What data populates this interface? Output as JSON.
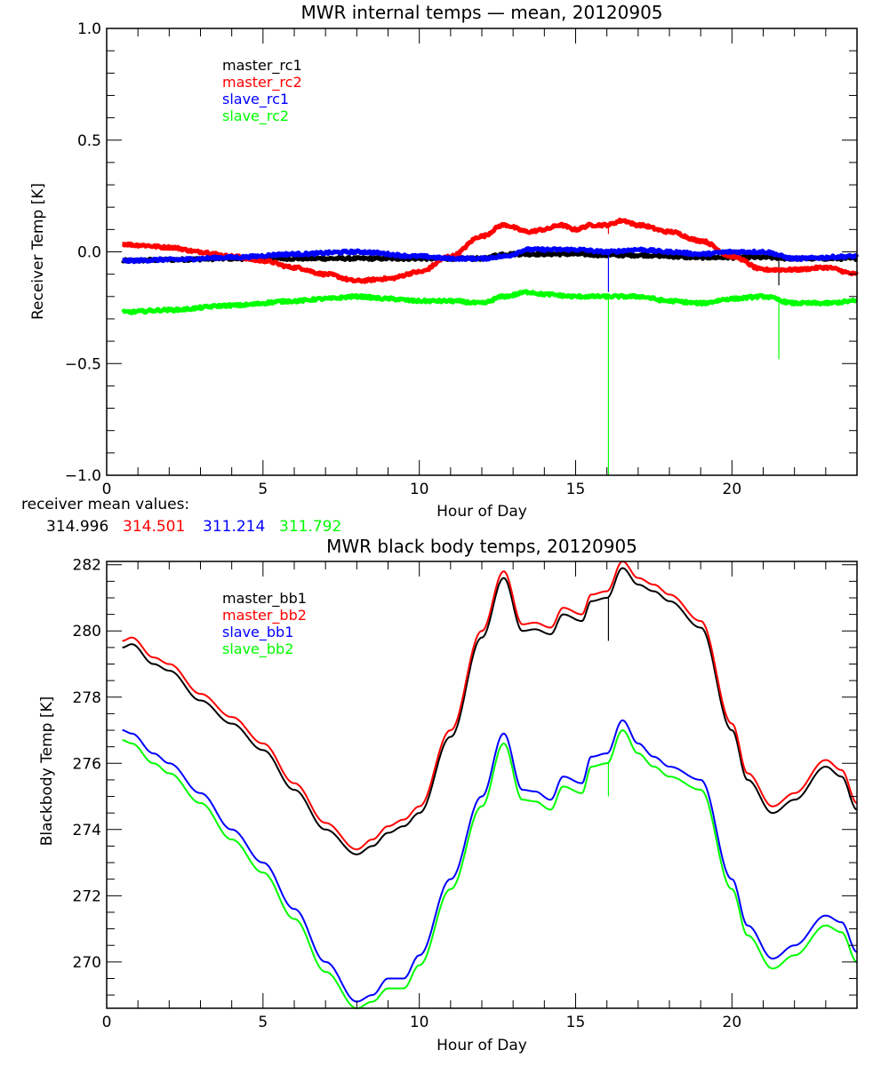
{
  "chart_data": [
    {
      "type": "line",
      "title": "MWR internal temps — mean, 20120905",
      "xlabel": "Hour of Day",
      "ylabel": "Receiver Temp [K]",
      "xlim": [
        0,
        24
      ],
      "ylim": [
        -1.0,
        1.0
      ],
      "xticks": [
        0,
        5,
        10,
        15,
        20
      ],
      "xtick_labels": [
        "0",
        "5",
        "10",
        "15",
        "20"
      ],
      "x_minor_step": 1,
      "yticks": [
        -1.0,
        -0.5,
        0.0,
        0.5,
        1.0
      ],
      "ytick_labels": [
        "−1.0",
        "−0.5",
        "0.0",
        "0.5",
        "1.0"
      ],
      "y_minor_step": 0.1,
      "grid": false,
      "legend_position": "top-left",
      "noise": 0.006,
      "series": [
        {
          "name": "master_rc1",
          "color": "#000000",
          "x": [
            0.5,
            2,
            4,
            6,
            8,
            10,
            12,
            12.7,
            13.5,
            15,
            16,
            17,
            19,
            21,
            22,
            24
          ],
          "y": [
            -0.04,
            -0.035,
            -0.03,
            -0.03,
            -0.03,
            -0.03,
            -0.03,
            -0.01,
            -0.01,
            -0.01,
            -0.015,
            -0.015,
            -0.025,
            -0.025,
            -0.03,
            -0.03
          ],
          "spikes": [
            {
              "x": 16.05,
              "y": -0.02
            },
            {
              "x": 21.5,
              "y": -0.15
            }
          ]
        },
        {
          "name": "master_rc2",
          "color": "#ff0000",
          "x": [
            0.5,
            1,
            2,
            3,
            4,
            5,
            6,
            7,
            8,
            9,
            10,
            11,
            12,
            12.7,
            13.5,
            14,
            14.5,
            15,
            15.5,
            16,
            16.5,
            17,
            18,
            19,
            20,
            21,
            22,
            23,
            24
          ],
          "y": [
            0.035,
            0.03,
            0.02,
            0.0,
            -0.02,
            -0.04,
            -0.07,
            -0.1,
            -0.13,
            -0.12,
            -0.09,
            -0.02,
            0.07,
            0.12,
            0.09,
            0.1,
            0.12,
            0.1,
            0.12,
            0.12,
            0.14,
            0.12,
            0.09,
            0.05,
            -0.02,
            -0.08,
            -0.08,
            -0.07,
            -0.1
          ],
          "spikes": [
            {
              "x": 16.05,
              "y": 0.08
            }
          ]
        },
        {
          "name": "slave_rc1",
          "color": "#0000ff",
          "x": [
            0.5,
            2,
            4,
            6,
            8,
            10,
            11,
            12,
            12.7,
            13.5,
            15,
            16,
            17,
            18,
            19,
            20,
            21,
            22,
            24
          ],
          "y": [
            -0.04,
            -0.035,
            -0.025,
            -0.01,
            0.0,
            -0.02,
            -0.03,
            -0.03,
            -0.02,
            0.01,
            0.01,
            0.0,
            0.01,
            0.0,
            -0.01,
            0.0,
            0.0,
            -0.03,
            -0.02
          ],
          "spikes": [
            {
              "x": 16.05,
              "y": -0.18
            }
          ]
        },
        {
          "name": "slave_rc2",
          "color": "#00ff00",
          "x": [
            0.5,
            2,
            4,
            6,
            7,
            8,
            9,
            10,
            11,
            12,
            12.7,
            13.5,
            14,
            15,
            16,
            17,
            18,
            19,
            20,
            21,
            22,
            23,
            24
          ],
          "y": [
            -0.27,
            -0.26,
            -0.24,
            -0.22,
            -0.21,
            -0.2,
            -0.21,
            -0.22,
            -0.22,
            -0.23,
            -0.2,
            -0.18,
            -0.19,
            -0.2,
            -0.2,
            -0.2,
            -0.22,
            -0.23,
            -0.21,
            -0.2,
            -0.23,
            -0.23,
            -0.22
          ],
          "spikes": [
            {
              "x": 16.05,
              "y": -1.0
            },
            {
              "x": 21.5,
              "y": -0.48
            }
          ]
        }
      ],
      "annotation": {
        "label": "receiver mean values:",
        "values": [
          {
            "text": "314.996",
            "color": "#000000"
          },
          {
            "text": "314.501",
            "color": "#ff0000"
          },
          {
            "text": "311.214",
            "color": "#0000ff"
          },
          {
            "text": "311.792",
            "color": "#00ff00"
          }
        ]
      }
    },
    {
      "type": "line",
      "title": "MWR black body temps, 20120905",
      "xlabel": "Hour of Day",
      "ylabel": "Blackbody Temp [K]",
      "xlim": [
        0,
        24
      ],
      "ylim": [
        268.6,
        282.1
      ],
      "xticks": [
        0,
        5,
        10,
        15,
        20
      ],
      "xtick_labels": [
        "0",
        "5",
        "10",
        "15",
        "20"
      ],
      "x_minor_step": 1,
      "yticks": [
        270,
        272,
        274,
        276,
        278,
        280,
        282
      ],
      "ytick_labels": [
        "270",
        "272",
        "274",
        "276",
        "278",
        "280",
        "282"
      ],
      "y_minor_step": 0.5,
      "grid": false,
      "legend_position": "top-left",
      "noise": 0,
      "series": [
        {
          "name": "master_bb1",
          "color": "#000000",
          "x": [
            0.5,
            0.8,
            1.5,
            2,
            3,
            4,
            5,
            6,
            7,
            8,
            8.5,
            9,
            9.5,
            10,
            11,
            12,
            12.7,
            13.3,
            13.7,
            14.2,
            14.6,
            15.2,
            15.5,
            16,
            16.5,
            17,
            17.5,
            18,
            19,
            20,
            20.5,
            21.3,
            22,
            23,
            23.5,
            24
          ],
          "y": [
            279.5,
            279.6,
            279.0,
            278.8,
            277.9,
            277.2,
            276.4,
            275.2,
            274.0,
            273.25,
            273.5,
            273.9,
            274.1,
            274.5,
            276.8,
            279.8,
            281.6,
            280.0,
            280.05,
            279.9,
            280.5,
            280.3,
            280.9,
            281.0,
            281.9,
            281.4,
            281.2,
            280.9,
            280.1,
            277.0,
            275.5,
            274.5,
            274.9,
            275.9,
            275.6,
            274.6
          ],
          "spikes": [
            {
              "x": 16.05,
              "y": 279.7
            }
          ]
        },
        {
          "name": "master_bb2",
          "color": "#ff0000",
          "x": [
            0.5,
            0.8,
            1.5,
            2,
            3,
            4,
            5,
            6,
            7,
            8,
            8.5,
            9,
            9.5,
            10,
            11,
            12,
            12.7,
            13.3,
            13.7,
            14.2,
            14.6,
            15.2,
            15.5,
            16,
            16.5,
            17,
            17.5,
            18,
            19,
            20,
            20.5,
            21.3,
            22,
            23,
            23.5,
            24
          ],
          "y": [
            279.7,
            279.8,
            279.2,
            279.0,
            278.1,
            277.4,
            276.6,
            275.4,
            274.2,
            273.4,
            273.7,
            274.1,
            274.3,
            274.7,
            277.0,
            280.0,
            281.8,
            280.2,
            280.25,
            280.1,
            280.7,
            280.5,
            281.1,
            281.2,
            282.1,
            281.6,
            281.4,
            281.1,
            280.3,
            277.2,
            275.7,
            274.7,
            275.1,
            276.1,
            275.8,
            274.8
          ],
          "spikes": []
        },
        {
          "name": "slave_bb1",
          "color": "#0000ff",
          "x": [
            0.5,
            0.8,
            1.5,
            2,
            3,
            4,
            5,
            6,
            7,
            8,
            8.5,
            9,
            9.5,
            10,
            11,
            12,
            12.7,
            13.3,
            13.7,
            14.2,
            14.6,
            15.2,
            15.5,
            16,
            16.5,
            17,
            17.5,
            18,
            19,
            20,
            20.5,
            21.3,
            22,
            23,
            23.5,
            24
          ],
          "y": [
            277.0,
            276.9,
            276.3,
            276.0,
            275.1,
            274.0,
            273.0,
            271.6,
            270.0,
            268.8,
            269.0,
            269.5,
            269.5,
            270.2,
            272.5,
            275.0,
            276.9,
            275.2,
            275.15,
            274.9,
            275.6,
            275.4,
            276.2,
            276.3,
            277.3,
            276.6,
            276.2,
            275.9,
            275.5,
            272.5,
            271.1,
            270.1,
            270.5,
            271.4,
            271.2,
            270.3
          ],
          "spikes": []
        },
        {
          "name": "slave_bb2",
          "color": "#00ff00",
          "x": [
            0.5,
            0.8,
            1.5,
            2,
            3,
            4,
            5,
            6,
            7,
            8,
            8.5,
            9,
            9.5,
            10,
            11,
            12,
            12.7,
            13.3,
            13.7,
            14.2,
            14.6,
            15.2,
            15.5,
            16,
            16.5,
            17,
            17.5,
            18,
            19,
            20,
            20.5,
            21.3,
            22,
            23,
            23.5,
            24
          ],
          "y": [
            276.7,
            276.6,
            276.0,
            275.7,
            274.8,
            273.7,
            272.7,
            271.3,
            269.7,
            268.6,
            268.8,
            269.2,
            269.2,
            269.9,
            272.2,
            274.7,
            276.6,
            274.9,
            274.85,
            274.6,
            275.3,
            275.1,
            275.9,
            276.0,
            277.0,
            276.3,
            275.9,
            275.6,
            275.2,
            272.2,
            270.8,
            269.8,
            270.2,
            271.1,
            270.9,
            270.0
          ],
          "spikes": [
            {
              "x": 16.05,
              "y": 275.0
            }
          ]
        }
      ]
    }
  ]
}
